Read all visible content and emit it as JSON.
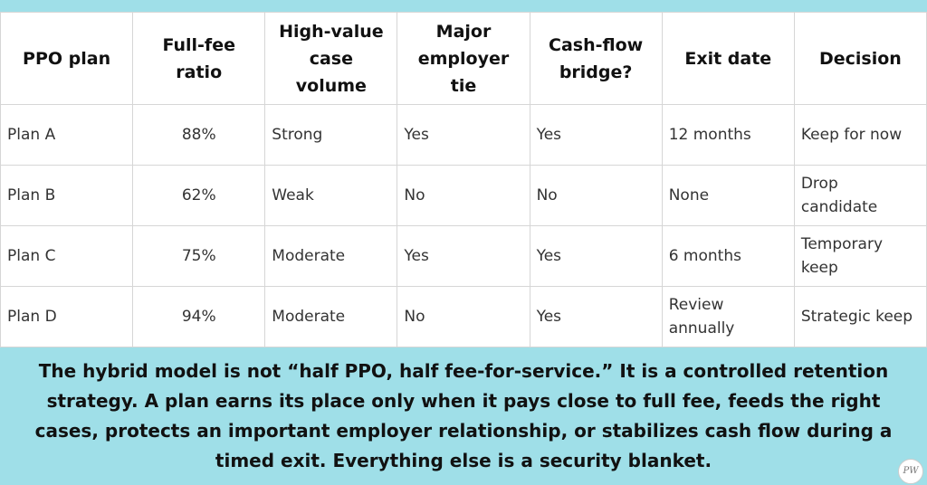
{
  "table": {
    "header": [
      "PPO plan",
      [
        "Full-fee",
        "ratio"
      ],
      [
        "High-value",
        "case volume"
      ],
      [
        "Major",
        "employer tie"
      ],
      [
        "Cash-flow",
        "bridge?"
      ],
      "Exit date",
      "Decision"
    ],
    "rows": [
      [
        "Plan A",
        "88%",
        "Strong",
        "Yes",
        "Yes",
        "12 months",
        "Keep for now"
      ],
      [
        "Plan B",
        "62%",
        "Weak",
        "No",
        "No",
        "None",
        [
          "Drop",
          "candidate"
        ]
      ],
      [
        "Plan C",
        "75%",
        "Moderate",
        "Yes",
        "Yes",
        "6 months",
        [
          "Temporary",
          "keep"
        ]
      ],
      [
        "Plan D",
        "94%",
        "Moderate",
        "No",
        "Yes",
        [
          "Review",
          "annually"
        ],
        "Strategic keep"
      ]
    ]
  },
  "footer": {
    "lines": [
      "The hybrid model is not “half PPO, half fee-for-service.” It is a controlled retention",
      "strategy. A plan earns its place only when it pays close to full fee, feeds the right",
      "cases, protects an important employer relationship, or stabilizes cash flow during a",
      "timed exit. Everything else is a security blanket."
    ]
  },
  "logo": {
    "text": "PW"
  }
}
